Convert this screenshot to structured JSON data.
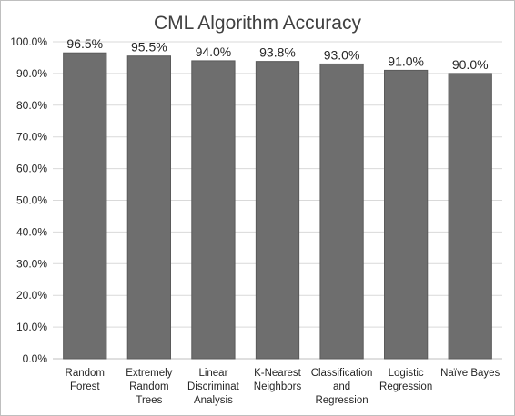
{
  "chart_data": {
    "type": "bar",
    "title": "CML Algorithm Accuracy",
    "xlabel": "",
    "ylabel": "",
    "ylim": [
      0,
      100
    ],
    "y_tick_step": 10,
    "y_tick_labels": [
      "0.0%",
      "10.0%",
      "20.0%",
      "30.0%",
      "40.0%",
      "50.0%",
      "60.0%",
      "70.0%",
      "80.0%",
      "90.0%",
      "100.0%"
    ],
    "grid": true,
    "legend": "none",
    "categories": [
      [
        "Random",
        "Forest"
      ],
      [
        "Extremely",
        "Random",
        "Trees"
      ],
      [
        "Linear",
        "Discriminat",
        "Analysis"
      ],
      [
        "K-Nearest",
        "Neighbors"
      ],
      [
        "Classification",
        "and",
        "Regression"
      ],
      [
        "Logistic",
        "Regression"
      ],
      [
        "Naïve Bayes"
      ]
    ],
    "values": [
      96.5,
      95.5,
      94.0,
      93.8,
      93.0,
      91.0,
      90.0
    ],
    "data_labels": [
      "96.5%",
      "95.5%",
      "94.0%",
      "93.8%",
      "93.0%",
      "91.0%",
      "90.0%"
    ],
    "colors": {
      "bar": "#6e6e6e",
      "bar_edge": "#5a5a5a",
      "grid": "#d9d9d9",
      "axis": "#bfbfbf"
    }
  }
}
